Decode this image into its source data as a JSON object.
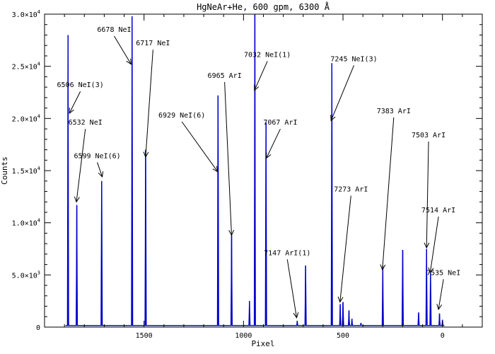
{
  "chart_data": {
    "type": "line",
    "title": "HgNeAr+He, 600 gpm, 6300 Å",
    "xlabel": "Pixel",
    "ylabel": "Counts",
    "xlim": [
      2000,
      -200
    ],
    "ylim": [
      0,
      30000
    ],
    "x_ticks": [
      {
        "value": 1500,
        "label": "1500"
      },
      {
        "value": 1000,
        "label": "1000"
      },
      {
        "value": 500,
        "label": "500"
      },
      {
        "value": 0,
        "label": "0"
      }
    ],
    "y_ticks": [
      {
        "value": 0,
        "base": "0",
        "exp": ""
      },
      {
        "value": 5000,
        "base": "5.0×10",
        "exp": "3"
      },
      {
        "value": 10000,
        "base": "1.0×10",
        "exp": "4"
      },
      {
        "value": 15000,
        "base": "1.5×10",
        "exp": "4"
      },
      {
        "value": 20000,
        "base": "2.0×10",
        "exp": "4"
      },
      {
        "value": 25000,
        "base": "2.5×10",
        "exp": "4"
      },
      {
        "value": 30000,
        "base": "3.0×10",
        "exp": "4"
      }
    ],
    "baseline": 150,
    "color": "#0000cc",
    "peaks": [
      {
        "x": 1882,
        "y": 28000
      },
      {
        "x": 1838,
        "y": 11700
      },
      {
        "x": 1713,
        "y": 14000
      },
      {
        "x": 1560,
        "y": 29800
      },
      {
        "x": 1492,
        "y": 17000
      },
      {
        "x": 1128,
        "y": 22200
      },
      {
        "x": 1060,
        "y": 8800
      },
      {
        "x": 970,
        "y": 2500
      },
      {
        "x": 943,
        "y": 30000
      },
      {
        "x": 887,
        "y": 19600
      },
      {
        "x": 730,
        "y": 600
      },
      {
        "x": 688,
        "y": 5900
      },
      {
        "x": 556,
        "y": 25300
      },
      {
        "x": 514,
        "y": 2200
      },
      {
        "x": 500,
        "y": 2400
      },
      {
        "x": 470,
        "y": 1600
      },
      {
        "x": 455,
        "y": 800
      },
      {
        "x": 410,
        "y": 400
      },
      {
        "x": 300,
        "y": 5900
      },
      {
        "x": 200,
        "y": 7400
      },
      {
        "x": 120,
        "y": 1400
      },
      {
        "x": 80,
        "y": 7500
      },
      {
        "x": 60,
        "y": 5200
      },
      {
        "x": 15,
        "y": 1300
      },
      {
        "x": 0,
        "y": 700
      }
    ],
    "annotations": [
      {
        "label": "6506 NeI(3)",
        "text_x": 1820,
        "text_y": 23000,
        "tip_x": 1875,
        "tip_y": 20500
      },
      {
        "label": "6532 NeI",
        "text_x": 1795,
        "text_y": 19400,
        "tip_x": 1840,
        "tip_y": 12000
      },
      {
        "label": "6599 NeI(6)",
        "text_x": 1735,
        "text_y": 16200,
        "tip_x": 1710,
        "tip_y": 14400
      },
      {
        "label": "6678 NeI",
        "text_x": 1650,
        "text_y": 28300,
        "tip_x": 1565,
        "tip_y": 25200
      },
      {
        "label": "6717 NeI",
        "text_x": 1455,
        "text_y": 27000,
        "tip_x": 1492,
        "tip_y": 16300
      },
      {
        "label": "6929 NeI(6)",
        "text_x": 1310,
        "text_y": 20100,
        "tip_x": 1130,
        "tip_y": 14900
      },
      {
        "label": "6965 ArI",
        "text_x": 1095,
        "text_y": 23900,
        "tip_x": 1060,
        "tip_y": 8800
      },
      {
        "label": "7032 NeI(1)",
        "text_x": 880,
        "text_y": 25900,
        "tip_x": 945,
        "tip_y": 22700
      },
      {
        "label": "7067 ArI",
        "text_x": 815,
        "text_y": 19400,
        "tip_x": 885,
        "tip_y": 16200
      },
      {
        "label": "7147 ArI(1)",
        "text_x": 780,
        "text_y": 6900,
        "tip_x": 733,
        "tip_y": 900
      },
      {
        "label": "7245 NeI(3)",
        "text_x": 445,
        "text_y": 25500,
        "tip_x": 560,
        "tip_y": 19800
      },
      {
        "label": "7273 ArI",
        "text_x": 460,
        "text_y": 13000,
        "tip_x": 515,
        "tip_y": 2400
      },
      {
        "label": "7383 ArI",
        "text_x": 245,
        "text_y": 20500,
        "tip_x": 302,
        "tip_y": 5500
      },
      {
        "label": "7503 ArI",
        "text_x": 70,
        "text_y": 18200,
        "tip_x": 80,
        "tip_y": 7600
      },
      {
        "label": "7514 ArI",
        "text_x": 20,
        "text_y": 11000,
        "tip_x": 62,
        "tip_y": 5200
      },
      {
        "label": "7535 NeI",
        "text_x": -5,
        "text_y": 5000,
        "tip_x": 20,
        "tip_y": 1700
      }
    ]
  }
}
